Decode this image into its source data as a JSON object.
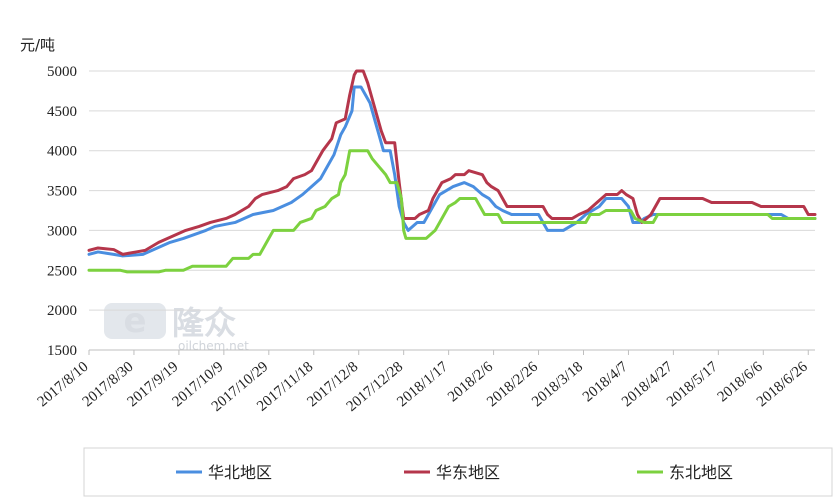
{
  "chart_data": {
    "type": "line",
    "ylabel": "元/吨",
    "ylim": [
      1500,
      5000
    ],
    "yticks": [
      1500,
      2000,
      2500,
      3000,
      3500,
      4000,
      4500,
      5000
    ],
    "xticks": [
      "2017/8/10",
      "2017/8/30",
      "2017/9/19",
      "2017/10/9",
      "2017/10/29",
      "2017/11/18",
      "2017/12/8",
      "2017/12/28",
      "2018/1/17",
      "2018/2/6",
      "2018/2/26",
      "2018/3/18",
      "2018/4/7",
      "2018/4/27",
      "2018/5/17",
      "2018/6/6",
      "2018/6/26"
    ],
    "x_start": "2017/8/10",
    "x_end": "2018/6/29",
    "legend_position": "bottom",
    "series": [
      {
        "name": "华北地区",
        "color": "#4a8ee0",
        "points": [
          [
            "2017/8/10",
            2700
          ],
          [
            "2017/8/14",
            2730
          ],
          [
            "2017/8/21",
            2700
          ],
          [
            "2017/8/25",
            2680
          ],
          [
            "2017/9/3",
            2700
          ],
          [
            "2017/9/7",
            2750
          ],
          [
            "2017/9/11",
            2800
          ],
          [
            "2017/9/15",
            2850
          ],
          [
            "2017/9/21",
            2900
          ],
          [
            "2017/9/26",
            2950
          ],
          [
            "2017/10/1",
            3000
          ],
          [
            "2017/10/5",
            3050
          ],
          [
            "2017/10/14",
            3100
          ],
          [
            "2017/10/18",
            3150
          ],
          [
            "2017/10/22",
            3200
          ],
          [
            "2017/10/31",
            3250
          ],
          [
            "2017/11/4",
            3300
          ],
          [
            "2017/11/8",
            3350
          ],
          [
            "2017/11/13",
            3450
          ],
          [
            "2017/11/17",
            3550
          ],
          [
            "2017/11/21",
            3650
          ],
          [
            "2017/11/24",
            3800
          ],
          [
            "2017/11/27",
            3950
          ],
          [
            "2017/11/30",
            4200
          ],
          [
            "2017/12/2",
            4300
          ],
          [
            "2017/12/5",
            4500
          ],
          [
            "2017/12/6",
            4800
          ],
          [
            "2017/12/9",
            4800
          ],
          [
            "2017/12/11",
            4700
          ],
          [
            "2017/12/13",
            4600
          ],
          [
            "2017/12/15",
            4400
          ],
          [
            "2017/12/17",
            4200
          ],
          [
            "2017/12/19",
            4000
          ],
          [
            "2017/12/22",
            4000
          ],
          [
            "2017/12/24",
            3700
          ],
          [
            "2017/12/26",
            3300
          ],
          [
            "2017/12/28",
            3100
          ],
          [
            "2017/12/30",
            3000
          ],
          [
            "2018/1/3",
            3100
          ],
          [
            "2018/1/6",
            3100
          ],
          [
            "2018/1/8",
            3200
          ],
          [
            "2018/1/10",
            3300
          ],
          [
            "2018/1/13",
            3450
          ],
          [
            "2018/1/16",
            3500
          ],
          [
            "2018/1/19",
            3550
          ],
          [
            "2018/1/24",
            3600
          ],
          [
            "2018/1/28",
            3550
          ],
          [
            "2018/2/1",
            3450
          ],
          [
            "2018/2/4",
            3400
          ],
          [
            "2018/2/7",
            3300
          ],
          [
            "2018/2/10",
            3250
          ],
          [
            "2018/2/14",
            3200
          ],
          [
            "2018/2/26",
            3200
          ],
          [
            "2018/2/28",
            3100
          ],
          [
            "2018/3/2",
            3000
          ],
          [
            "2018/3/9",
            3000
          ],
          [
            "2018/3/12",
            3050
          ],
          [
            "2018/3/15",
            3100
          ],
          [
            "2018/3/19",
            3200
          ],
          [
            "2018/3/25",
            3300
          ],
          [
            "2018/3/28",
            3400
          ],
          [
            "2018/4/4",
            3400
          ],
          [
            "2018/4/7",
            3300
          ],
          [
            "2018/4/9",
            3100
          ],
          [
            "2018/4/12",
            3100
          ],
          [
            "2018/4/14",
            3150
          ],
          [
            "2018/4/18",
            3200
          ],
          [
            "2018/6/6",
            3200
          ],
          [
            "2018/6/10",
            3200
          ],
          [
            "2018/6/14",
            3200
          ],
          [
            "2018/6/17",
            3150
          ],
          [
            "2018/6/29",
            3150
          ]
        ]
      },
      {
        "name": "华东地区",
        "color": "#b5364b",
        "points": [
          [
            "2017/8/10",
            2750
          ],
          [
            "2017/8/14",
            2780
          ],
          [
            "2017/8/21",
            2760
          ],
          [
            "2017/8/25",
            2700
          ],
          [
            "2017/8/31",
            2730
          ],
          [
            "2017/9/4",
            2750
          ],
          [
            "2017/9/7",
            2800
          ],
          [
            "2017/9/10",
            2850
          ],
          [
            "2017/9/14",
            2900
          ],
          [
            "2017/9/18",
            2950
          ],
          [
            "2017/9/22",
            3000
          ],
          [
            "2017/9/28",
            3050
          ],
          [
            "2017/10/3",
            3100
          ],
          [
            "2017/10/10",
            3150
          ],
          [
            "2017/10/14",
            3200
          ],
          [
            "2017/10/17",
            3250
          ],
          [
            "2017/10/20",
            3300
          ],
          [
            "2017/10/23",
            3400
          ],
          [
            "2017/10/26",
            3450
          ],
          [
            "2017/11/2",
            3500
          ],
          [
            "2017/11/6",
            3550
          ],
          [
            "2017/11/9",
            3650
          ],
          [
            "2017/11/14",
            3700
          ],
          [
            "2017/11/17",
            3750
          ],
          [
            "2017/11/19",
            3850
          ],
          [
            "2017/11/22",
            4000
          ],
          [
            "2017/11/26",
            4150
          ],
          [
            "2017/11/28",
            4350
          ],
          [
            "2017/12/2",
            4400
          ],
          [
            "2017/12/4",
            4700
          ],
          [
            "2017/12/6",
            4950
          ],
          [
            "2017/12/7",
            5000
          ],
          [
            "2017/12/10",
            5000
          ],
          [
            "2017/12/12",
            4850
          ],
          [
            "2017/12/14",
            4650
          ],
          [
            "2017/12/16",
            4450
          ],
          [
            "2017/12/18",
            4250
          ],
          [
            "2017/12/20",
            4100
          ],
          [
            "2017/12/24",
            4100
          ],
          [
            "2017/12/26",
            3600
          ],
          [
            "2017/12/28",
            3150
          ],
          [
            "2018/1/2",
            3150
          ],
          [
            "2018/1/4",
            3200
          ],
          [
            "2018/1/8",
            3250
          ],
          [
            "2018/1/10",
            3400
          ],
          [
            "2018/1/12",
            3500
          ],
          [
            "2018/1/14",
            3600
          ],
          [
            "2018/1/18",
            3650
          ],
          [
            "2018/1/20",
            3700
          ],
          [
            "2018/1/24",
            3700
          ],
          [
            "2018/1/26",
            3750
          ],
          [
            "2018/2/1",
            3700
          ],
          [
            "2018/2/3",
            3600
          ],
          [
            "2018/2/5",
            3550
          ],
          [
            "2018/2/8",
            3500
          ],
          [
            "2018/2/10",
            3400
          ],
          [
            "2018/2/12",
            3300
          ],
          [
            "2018/2/28",
            3300
          ],
          [
            "2018/3/2",
            3200
          ],
          [
            "2018/3/4",
            3150
          ],
          [
            "2018/3/13",
            3150
          ],
          [
            "2018/3/16",
            3200
          ],
          [
            "2018/3/20",
            3250
          ],
          [
            "2018/3/24",
            3350
          ],
          [
            "2018/3/28",
            3450
          ],
          [
            "2018/4/2",
            3450
          ],
          [
            "2018/4/4",
            3500
          ],
          [
            "2018/4/6",
            3450
          ],
          [
            "2018/4/9",
            3400
          ],
          [
            "2018/4/11",
            3200
          ],
          [
            "2018/4/13",
            3100
          ],
          [
            "2018/4/17",
            3200
          ],
          [
            "2018/4/19",
            3300
          ],
          [
            "2018/4/21",
            3400
          ],
          [
            "2018/5/10",
            3400
          ],
          [
            "2018/5/14",
            3350
          ],
          [
            "2018/6/1",
            3350
          ],
          [
            "2018/6/5",
            3300
          ],
          [
            "2018/6/24",
            3300
          ],
          [
            "2018/6/26",
            3200
          ],
          [
            "2018/6/29",
            3200
          ]
        ]
      },
      {
        "name": "东北地区",
        "color": "#7cd13f",
        "points": [
          [
            "2017/8/10",
            2500
          ],
          [
            "2017/8/24",
            2500
          ],
          [
            "2017/8/27",
            2480
          ],
          [
            "2017/9/10",
            2480
          ],
          [
            "2017/9/13",
            2500
          ],
          [
            "2017/9/21",
            2500
          ],
          [
            "2017/9/25",
            2550
          ],
          [
            "2017/10/10",
            2550
          ],
          [
            "2017/10/13",
            2650
          ],
          [
            "2017/10/20",
            2650
          ],
          [
            "2017/10/22",
            2700
          ],
          [
            "2017/10/25",
            2700
          ],
          [
            "2017/10/27",
            2800
          ],
          [
            "2017/10/29",
            2900
          ],
          [
            "2017/10/31",
            3000
          ],
          [
            "2017/11/9",
            3000
          ],
          [
            "2017/11/12",
            3100
          ],
          [
            "2017/11/17",
            3150
          ],
          [
            "2017/11/19",
            3250
          ],
          [
            "2017/11/23",
            3300
          ],
          [
            "2017/11/26",
            3400
          ],
          [
            "2017/11/29",
            3450
          ],
          [
            "2017/11/30",
            3600
          ],
          [
            "2017/12/2",
            3700
          ],
          [
            "2017/12/4",
            4000
          ],
          [
            "2017/12/12",
            4000
          ],
          [
            "2017/12/14",
            3900
          ],
          [
            "2017/12/17",
            3800
          ],
          [
            "2017/12/20",
            3700
          ],
          [
            "2017/12/22",
            3600
          ],
          [
            "2017/12/25",
            3600
          ],
          [
            "2017/12/27",
            3400
          ],
          [
            "2017/12/28",
            3000
          ],
          [
            "2017/12/29",
            2900
          ],
          [
            "2018/1/7",
            2900
          ],
          [
            "2018/1/9",
            2950
          ],
          [
            "2018/1/11",
            3000
          ],
          [
            "2018/1/13",
            3100
          ],
          [
            "2018/1/15",
            3200
          ],
          [
            "2018/1/17",
            3300
          ],
          [
            "2018/1/20",
            3350
          ],
          [
            "2018/1/22",
            3400
          ],
          [
            "2018/1/29",
            3400
          ],
          [
            "2018/1/31",
            3300
          ],
          [
            "2018/2/2",
            3200
          ],
          [
            "2018/2/8",
            3200
          ],
          [
            "2018/2/10",
            3100
          ],
          [
            "2018/3/19",
            3100
          ],
          [
            "2018/3/21",
            3200
          ],
          [
            "2018/3/25",
            3200
          ],
          [
            "2018/3/28",
            3250
          ],
          [
            "2018/4/8",
            3250
          ],
          [
            "2018/4/10",
            3150
          ],
          [
            "2018/4/14",
            3100
          ],
          [
            "2018/4/18",
            3100
          ],
          [
            "2018/4/20",
            3200
          ],
          [
            "2018/6/8",
            3200
          ],
          [
            "2018/6/10",
            3150
          ],
          [
            "2018/6/29",
            3150
          ]
        ]
      }
    ]
  }
}
